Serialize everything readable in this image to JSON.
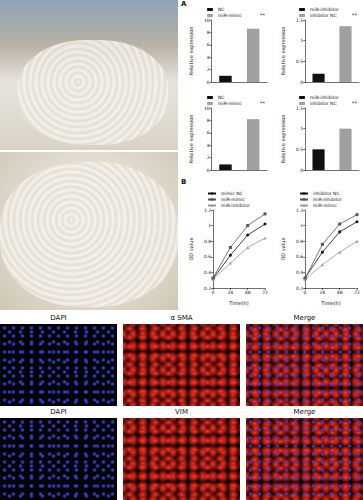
{
  "figure": {
    "panel_labels": [
      "A",
      "B"
    ]
  },
  "chart_data": [
    {
      "type": "bar",
      "categories": [
        "NC",
        "miR-mimic"
      ],
      "values": [
        1,
        8.6
      ],
      "colors": [
        "#111111",
        "#a0a0a0"
      ],
      "ylabel": "Relative expression",
      "ylim": [
        0,
        10
      ],
      "yticks": [
        0,
        2,
        4,
        6,
        8,
        10
      ],
      "annotation": "**",
      "legend": "top-left",
      "tick_labels": "y",
      "grid": false
    },
    {
      "type": "bar",
      "categories": [
        "miR-inhibitor",
        "inhibitor NC"
      ],
      "values": [
        0.2,
        1.35
      ],
      "colors": [
        "#111111",
        "#a0a0a0"
      ],
      "ylabel": "Relative expression",
      "ylim": [
        0,
        1.5
      ],
      "yticks": [
        0,
        0.5,
        1,
        1.5
      ],
      "annotation": "**",
      "legend": "top-left",
      "tick_labels": "y",
      "grid": false
    },
    {
      "type": "bar",
      "categories": [
        "NC",
        "miR-mimic"
      ],
      "values": [
        0.9,
        8.2
      ],
      "colors": [
        "#111111",
        "#a0a0a0"
      ],
      "ylabel": "Relative expression",
      "ylim": [
        0,
        10
      ],
      "yticks": [
        0,
        2,
        4,
        6,
        8,
        10
      ],
      "annotation": "**",
      "legend": "top-left",
      "tick_labels": "y",
      "grid": false
    },
    {
      "type": "bar",
      "categories": [
        "miR-inhibitor",
        "inhibitor NC"
      ],
      "values": [
        0.5,
        1
      ],
      "colors": [
        "#111111",
        "#a0a0a0"
      ],
      "ylabel": "Relative expression",
      "ylim": [
        0,
        1.5
      ],
      "yticks": [
        0,
        0.5,
        1,
        1.5
      ],
      "annotation": "**",
      "legend": "top-left",
      "tick_labels": "y",
      "grid": false
    },
    {
      "type": "line",
      "x": [
        0,
        24,
        48,
        72
      ],
      "xlabel": "Time(h)",
      "ylabel": "OD value",
      "xlim": [
        0,
        72
      ],
      "xticks": [
        0,
        24,
        48,
        72
      ],
      "ylim": [
        0.2,
        1.2
      ],
      "yticks": [
        0.2,
        0.4,
        0.6,
        0.8,
        1,
        1.2
      ],
      "series": [
        {
          "name": "mimic NC",
          "color": "#111111",
          "marker": "circle",
          "values": [
            0.32,
            0.62,
            0.88,
            1.02
          ]
        },
        {
          "name": "miR-mimic",
          "color": "#555555",
          "marker": "rect",
          "values": [
            0.33,
            0.72,
            1.0,
            1.15
          ]
        },
        {
          "name": "miR-inhibitor",
          "color": "#999999",
          "marker": "triangle",
          "values": [
            0.31,
            0.52,
            0.72,
            0.84
          ]
        }
      ],
      "legend": "top-left",
      "grid": false
    },
    {
      "type": "line",
      "x": [
        0,
        24,
        48,
        72
      ],
      "xlabel": "Time(h)",
      "ylabel": "OD value",
      "xlim": [
        0,
        72
      ],
      "xticks": [
        0,
        24,
        48,
        72
      ],
      "ylim": [
        0.2,
        1.2
      ],
      "yticks": [
        0.2,
        0.4,
        0.6,
        0.8,
        1,
        1.2
      ],
      "series": [
        {
          "name": "inhibitor NC",
          "color": "#111111",
          "marker": "circle",
          "values": [
            0.33,
            0.66,
            0.92,
            1.05
          ]
        },
        {
          "name": "miR-inhibitor",
          "color": "#555555",
          "marker": "rect",
          "values": [
            0.32,
            0.76,
            1.02,
            1.14
          ]
        },
        {
          "name": "miR-mimic",
          "color": "#999999",
          "marker": "triangle",
          "values": [
            0.31,
            0.5,
            0.66,
            0.8
          ]
        }
      ],
      "legend": "top-left",
      "grid": false
    }
  ],
  "microscopy": {
    "rows": [
      [
        "DAPI",
        "α SMA",
        "Merge"
      ],
      [
        "DAPI",
        "VIM",
        "Merge"
      ]
    ]
  }
}
